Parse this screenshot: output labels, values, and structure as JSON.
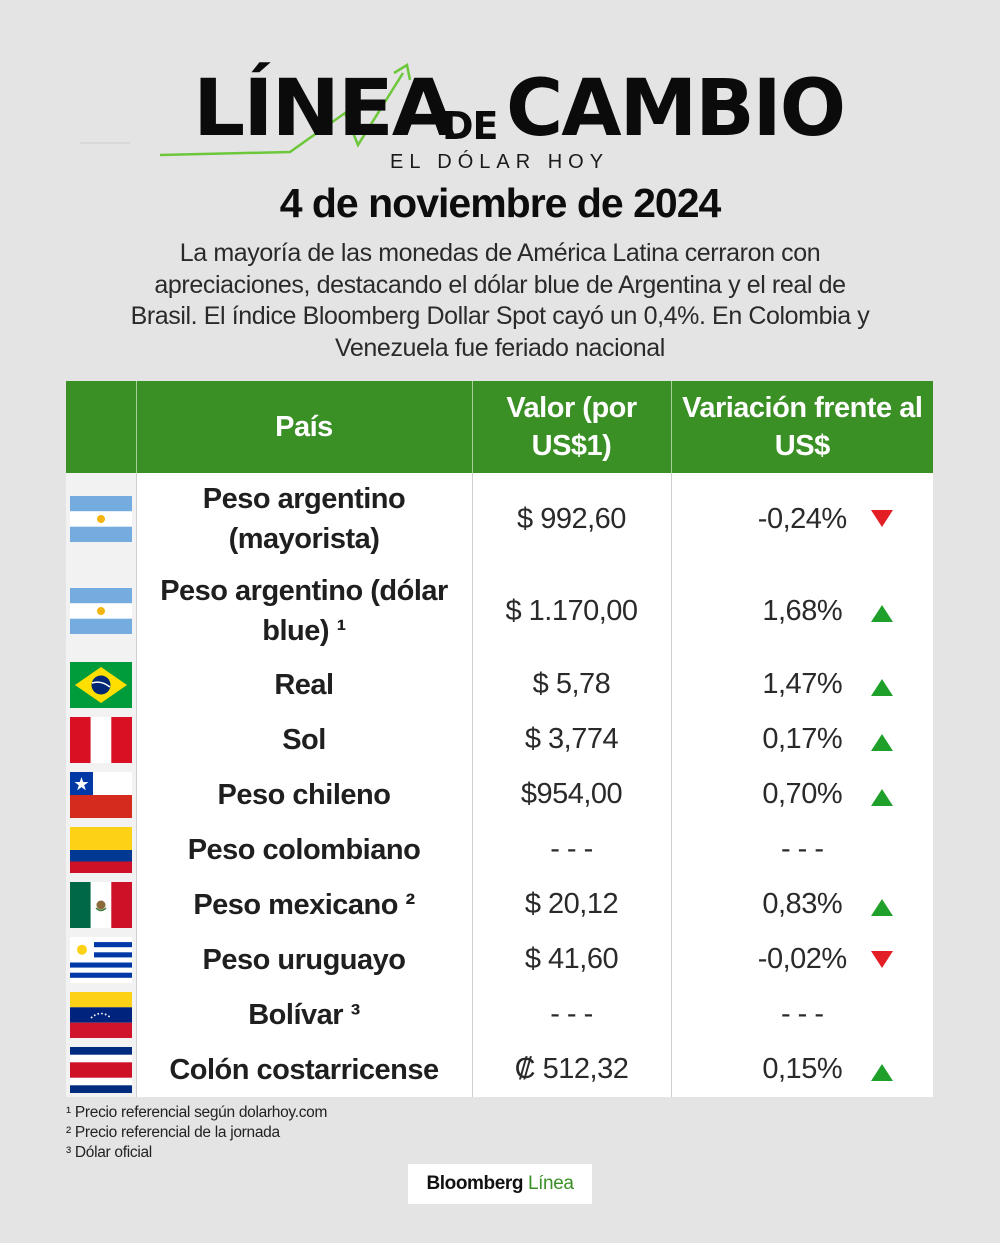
{
  "header": {
    "logo_linea": "LÍNEA",
    "logo_de": "DE",
    "logo_cambio": "CAMBIO",
    "logo_subtitle": "EL DÓLAR HOY",
    "date": "4 de noviembre de 2024",
    "summary": "La mayoría de las monedas de América Latina cerraron con apreciaciones, destacando el dólar blue de Argentina y el real de Brasil. El índice Bloomberg Dollar Spot cayó un 0,4%. En Colombia y Venezuela fue feriado nacional"
  },
  "table": {
    "headers": {
      "country": "País",
      "value": "Valor (por US$1)",
      "change": "Variación frente al US$"
    },
    "rows": [
      {
        "flag": "argentina-flag",
        "country": "Peso argentino (mayorista)",
        "value": "$ 992,60",
        "change": "-0,24%",
        "direction": "down"
      },
      {
        "flag": "argentina-flag",
        "country": "Peso argentino (dólar blue) ¹",
        "value": "$ 1.170,00",
        "change": "1,68%",
        "direction": "up"
      },
      {
        "flag": "brazil-flag",
        "country": "Real",
        "value": "$ 5,78",
        "change": "1,47%",
        "direction": "up"
      },
      {
        "flag": "peru-flag",
        "country": "Sol",
        "value": "$ 3,774",
        "change": "0,17%",
        "direction": "up"
      },
      {
        "flag": "chile-flag",
        "country": "Peso chileno",
        "value": "$954,00",
        "change": "0,70%",
        "direction": "up"
      },
      {
        "flag": "colombia-flag",
        "country": "Peso colombiano",
        "value": "- - -",
        "change": "- - -",
        "direction": "none"
      },
      {
        "flag": "mexico-flag",
        "country": "Peso mexicano ²",
        "value": "$ 20,12",
        "change": "0,83%",
        "direction": "up"
      },
      {
        "flag": "uruguay-flag",
        "country": "Peso uruguayo",
        "value": "$ 41,60",
        "change": "-0,02%",
        "direction": "down"
      },
      {
        "flag": "venezuela-flag",
        "country": "Bolívar ³",
        "value": "- - -",
        "change": "- - -",
        "direction": "none"
      },
      {
        "flag": "costa-rica-flag",
        "country": "Colón costarricense",
        "value": "₡ 512,32",
        "change": "0,15%",
        "direction": "up"
      }
    ]
  },
  "footnotes": [
    "¹ Precio referencial según dolarhoy.com",
    "² Precio referencial de la jornada",
    "³ Dólar oficial"
  ],
  "brand": {
    "part1": "Bloomberg",
    "part2": "Línea"
  },
  "colors": {
    "header_green": "#3a8f25",
    "up_arrow": "#1fa02a",
    "down_arrow": "#e31e24",
    "background": "#e4e4e4"
  }
}
